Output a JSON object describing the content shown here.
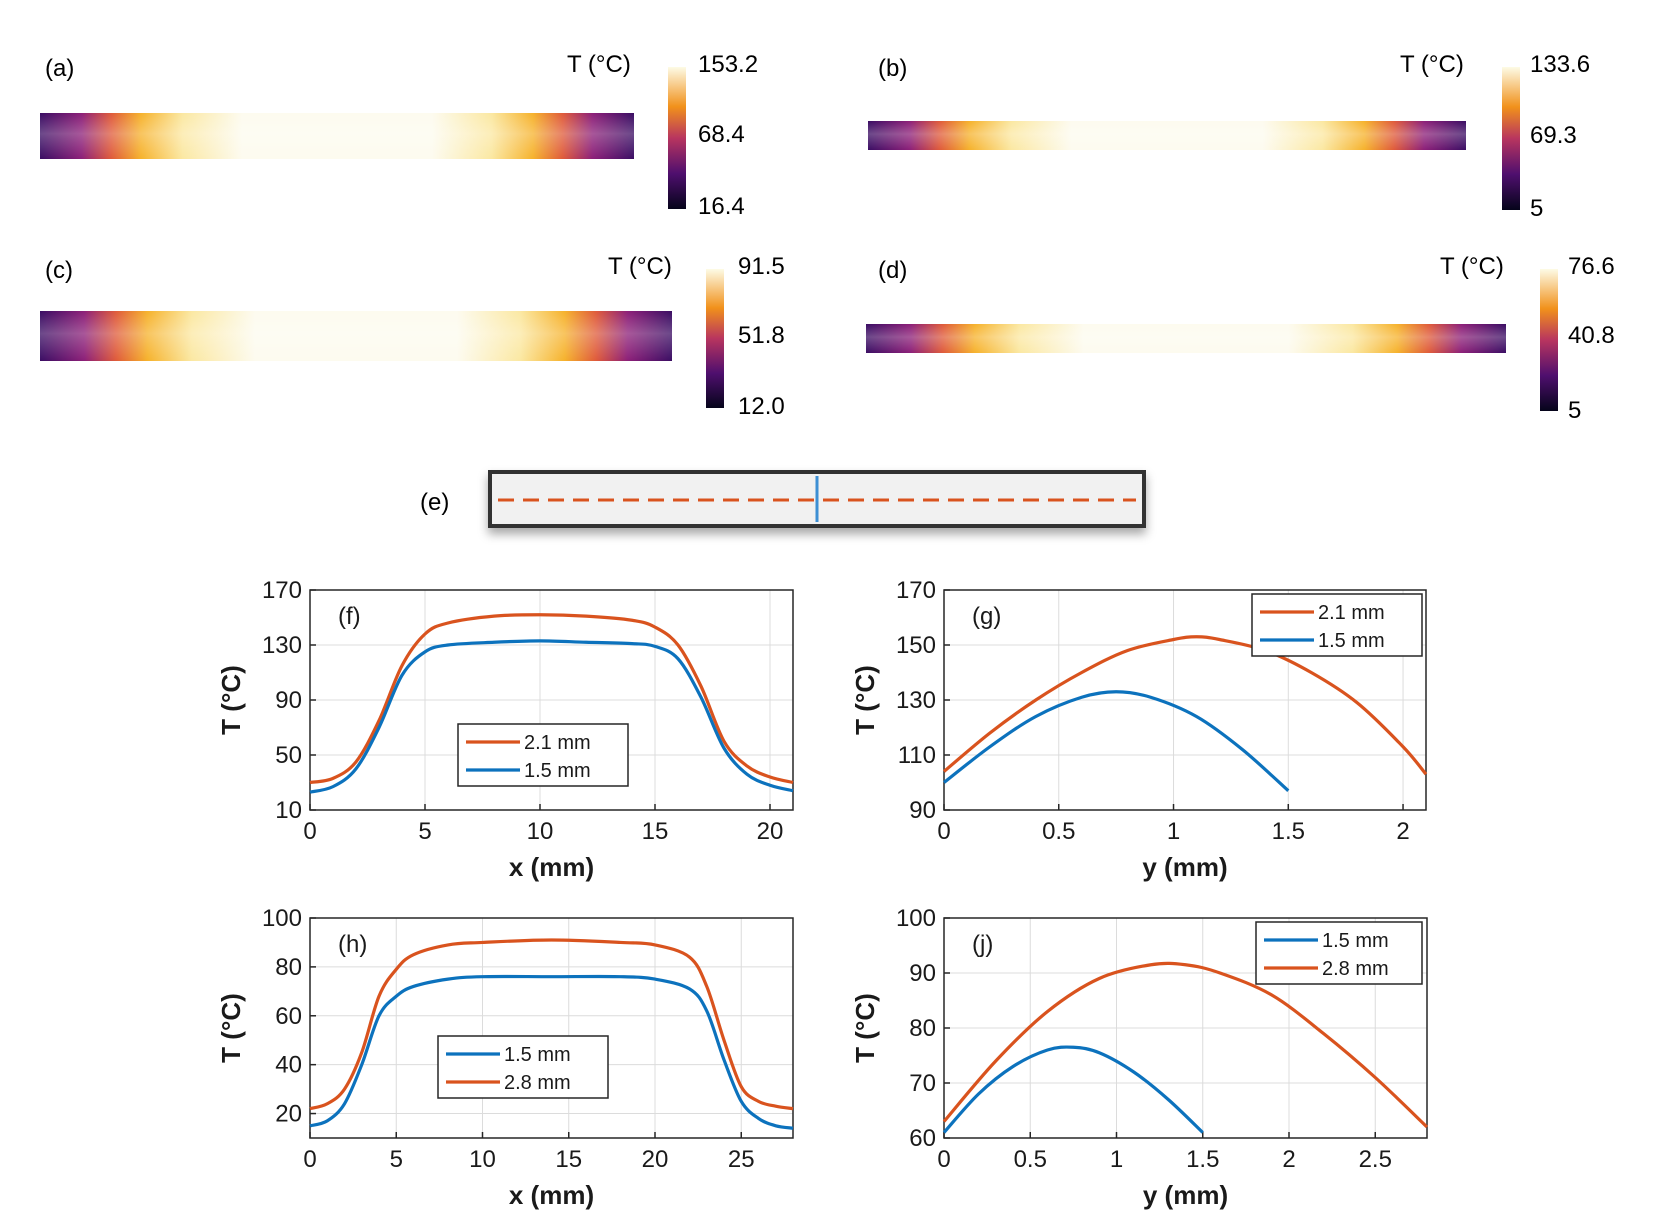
{
  "colors": {
    "orange": "#d9531e",
    "blue": "#0c72bd",
    "grid": "#dcdcdc",
    "frame_bg": "#f1f1f1",
    "frame_stroke": "#333333"
  },
  "heatmaps": [
    {
      "panel": "(a)",
      "unit": "T (°C)",
      "max": "153.2",
      "mid": "68.4",
      "min": "16.4"
    },
    {
      "panel": "(b)",
      "unit": "T (°C)",
      "max": "133.6",
      "mid": "69.3",
      "min": "5"
    },
    {
      "panel": "(c)",
      "unit": "T (°C)",
      "max": "91.5",
      "mid": "51.8",
      "min": "12.0"
    },
    {
      "panel": "(d)",
      "unit": "T (°C)",
      "max": "76.6",
      "mid": "40.8",
      "min": "5"
    }
  ],
  "schematic": {
    "panel": "(e)"
  },
  "chart_data": [
    {
      "panel": "(f)",
      "type": "line",
      "xlabel": "x (mm)",
      "ylabel": "T (°C)",
      "xlim": [
        0,
        21
      ],
      "ylim": [
        10,
        170
      ],
      "xticks": [
        0,
        5,
        10,
        15,
        20
      ],
      "yticks": [
        10,
        50,
        90,
        130,
        170
      ],
      "legend_position": "center",
      "series": [
        {
          "name": "2.1 mm",
          "color": "orange",
          "x": [
            0,
            1,
            2,
            3,
            4,
            5,
            6,
            8,
            10,
            12,
            14,
            15,
            16,
            17,
            18,
            19,
            20,
            21
          ],
          "y": [
            30,
            33,
            45,
            75,
            115,
            138,
            146,
            151,
            152,
            151,
            148,
            143,
            130,
            100,
            60,
            42,
            34,
            30
          ]
        },
        {
          "name": "1.5 mm",
          "color": "blue",
          "x": [
            0,
            1,
            2,
            3,
            4,
            5,
            6,
            8,
            10,
            12,
            14,
            15,
            16,
            17,
            18,
            19,
            20,
            21
          ],
          "y": [
            23,
            27,
            40,
            70,
            108,
            125,
            130,
            132,
            133,
            132,
            131,
            129,
            120,
            92,
            55,
            36,
            28,
            24
          ]
        }
      ]
    },
    {
      "panel": "(g)",
      "type": "line",
      "xlabel": "y (mm)",
      "ylabel": "T (°C)",
      "xlim": [
        0,
        2.1
      ],
      "ylim": [
        90,
        170
      ],
      "xticks": [
        0,
        0.5,
        1,
        1.5,
        2
      ],
      "yticks": [
        90,
        110,
        130,
        150,
        170
      ],
      "legend_position": "top-right",
      "series": [
        {
          "name": "2.1 mm",
          "color": "orange",
          "x": [
            0,
            0.2,
            0.4,
            0.6,
            0.8,
            1.0,
            1.1,
            1.2,
            1.4,
            1.6,
            1.8,
            2.0,
            2.1
          ],
          "y": [
            104,
            118,
            130,
            140,
            148,
            152,
            153,
            152,
            148,
            140,
            129,
            113,
            103
          ]
        },
        {
          "name": "1.5 mm",
          "color": "blue",
          "x": [
            0,
            0.2,
            0.4,
            0.6,
            0.75,
            0.9,
            1.1,
            1.3,
            1.5
          ],
          "y": [
            100,
            113,
            124,
            131,
            133,
            131,
            124,
            112,
            97
          ]
        }
      ]
    },
    {
      "panel": "(h)",
      "type": "line",
      "xlabel": "x (mm)",
      "ylabel": "T (°C)",
      "xlim": [
        0,
        28
      ],
      "ylim": [
        10,
        100
      ],
      "xticks": [
        0,
        5,
        10,
        15,
        20,
        25
      ],
      "yticks": [
        20,
        40,
        60,
        80,
        100
      ],
      "legend_position": "center",
      "series": [
        {
          "name": "1.5 mm",
          "color": "blue",
          "x": [
            0,
            1,
            2,
            3,
            4,
            5,
            6,
            8,
            10,
            14,
            18,
            20,
            22,
            23,
            24,
            25,
            26,
            27,
            28
          ],
          "y": [
            15,
            17,
            24,
            40,
            60,
            68,
            72,
            75,
            76,
            76,
            76,
            75,
            71,
            62,
            42,
            25,
            18,
            15,
            14
          ]
        },
        {
          "name": "2.8 mm",
          "color": "orange",
          "x": [
            0,
            1,
            2,
            3,
            4,
            5,
            6,
            8,
            10,
            14,
            18,
            20,
            22,
            23,
            24,
            25,
            26,
            27,
            28
          ],
          "y": [
            22,
            24,
            30,
            45,
            68,
            79,
            85,
            89,
            90,
            91,
            90,
            89,
            84,
            72,
            50,
            31,
            25,
            23,
            22
          ]
        }
      ]
    },
    {
      "panel": "(j)",
      "type": "line",
      "xlabel": "y (mm)",
      "ylabel": "T (°C)",
      "xlim": [
        0,
        2.8
      ],
      "ylim": [
        60,
        100
      ],
      "xticks": [
        0,
        0.5,
        1,
        1.5,
        2,
        2.5
      ],
      "yticks": [
        60,
        70,
        80,
        90,
        100
      ],
      "legend_position": "top-right",
      "series": [
        {
          "name": "1.5 mm",
          "color": "blue",
          "x": [
            0,
            0.2,
            0.4,
            0.6,
            0.75,
            0.9,
            1.1,
            1.3,
            1.5
          ],
          "y": [
            61,
            68,
            73,
            76,
            76.5,
            75.5,
            72,
            67,
            61
          ]
        },
        {
          "name": "2.8 mm",
          "color": "orange",
          "x": [
            0,
            0.3,
            0.6,
            0.9,
            1.2,
            1.4,
            1.6,
            1.9,
            2.2,
            2.5,
            2.8
          ],
          "y": [
            63,
            74,
            83,
            89,
            91.5,
            91.5,
            90,
            86,
            79,
            71,
            62
          ]
        }
      ]
    }
  ]
}
